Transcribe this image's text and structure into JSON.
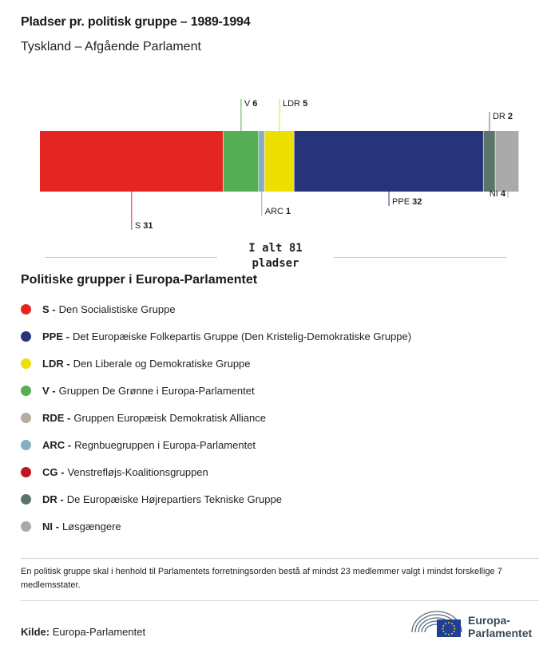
{
  "header": {
    "title": "Pladser pr. politisk gruppe – 1989-1994",
    "subtitle": "Tyskland – Afgående Parlament"
  },
  "chart_data": {
    "type": "bar",
    "orientation": "horizontal-stacked",
    "total_label_line1": "I alt 81",
    "total_label_line2": "pladser",
    "total": 81,
    "segments": [
      {
        "name": "S",
        "value": 31,
        "color": "#e52521",
        "label_side": "bottom"
      },
      {
        "name": "V",
        "value": 6,
        "color": "#56ae55",
        "label_side": "top"
      },
      {
        "name": "ARC",
        "value": 1,
        "color": "#85aec6",
        "label_side": "bottom"
      },
      {
        "name": "LDR",
        "value": 5,
        "color": "#ede001",
        "label_side": "top"
      },
      {
        "name": "PPE",
        "value": 32,
        "color": "#283479",
        "label_side": "bottom"
      },
      {
        "name": "DR",
        "value": 2,
        "color": "#5a7568",
        "label_side": "top"
      },
      {
        "name": "NI",
        "value": 4,
        "color": "#aaaaaa",
        "label_side": "bottom"
      }
    ]
  },
  "legend": {
    "title": "Politiske grupper i Europa-Parlamentet",
    "items": [
      {
        "abbr": "S -",
        "text": "Den Socialistiske Gruppe",
        "color": "#e52521"
      },
      {
        "abbr": "PPE -",
        "text": "Det Europæiske Folkepartis Gruppe (Den Kristelig-Demokratiske Gruppe)",
        "color": "#283479"
      },
      {
        "abbr": "LDR -",
        "text": "Den Liberale og Demokratiske Gruppe",
        "color": "#ede001"
      },
      {
        "abbr": "V -",
        "text": "Gruppen De Grønne i Europa-Parlamentet",
        "color": "#56ae55"
      },
      {
        "abbr": "RDE -",
        "text": "Gruppen Europæisk Demokratisk Alliance",
        "color": "#b5ad9e"
      },
      {
        "abbr": "ARC -",
        "text": "Regnbuegruppen i Europa-Parlamentet",
        "color": "#85aec6"
      },
      {
        "abbr": "CG -",
        "text": "Venstrefløjs-Koalitionsgruppen",
        "color": "#c6141c"
      },
      {
        "abbr": "DR -",
        "text": "De Europæiske Højrepartiers Tekniske Gruppe",
        "color": "#5a7568"
      },
      {
        "abbr": "NI -",
        "text": "Løsgængere",
        "color": "#aaaaaa"
      }
    ]
  },
  "note": "En politisk gruppe skal i henhold til Parlamentets forretningsorden bestå af mindst 23 medlemmer valgt i mindst forskellige 7 medlemsstater.",
  "source": {
    "label": "Kilde:",
    "value": "Europa-Parlamentet"
  },
  "logo": {
    "line1": "Europa-",
    "line2": "Parlamentet",
    "icon": "european-parliament-hemicycle-icon"
  }
}
